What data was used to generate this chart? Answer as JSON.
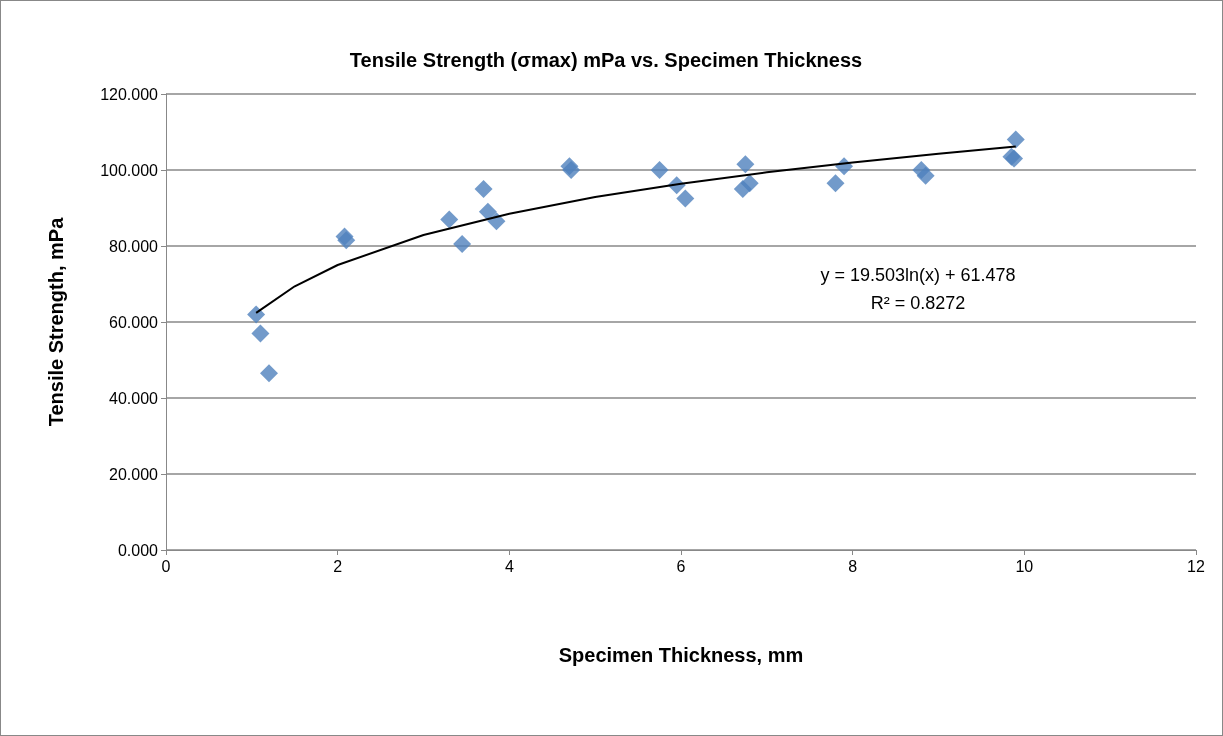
{
  "chart_data": {
    "type": "scatter",
    "title": "Tensile Strength (σmax) mPa vs. Specimen Thickness",
    "xlabel": "Specimen Thickness, mm",
    "ylabel": "Tensile Strength, mPa",
    "annotations": [
      "y = 19.503ln(x) + 61.478",
      "R² = 0.8272"
    ],
    "series": [
      {
        "color": "#4f81bd",
        "x": [
          1.05,
          1.1,
          1.2,
          2.08,
          2.1,
          3.3,
          3.45,
          3.7,
          3.75,
          3.85,
          4.7,
          4.72,
          5.75,
          5.95,
          6.05,
          6.75,
          6.72,
          6.8,
          7.8,
          7.9,
          8.8,
          8.85,
          9.85,
          9.9,
          9.88
        ],
        "values": [
          62,
          57,
          46.5,
          82.5,
          81.5,
          87,
          80.5,
          95,
          89,
          86.5,
          101,
          100,
          100,
          96,
          92.5,
          101.5,
          95,
          96.5,
          96.5,
          101,
          100,
          98.5,
          103.5,
          108,
          103
        ]
      },
      {
        "type": "line",
        "color": "#000000",
        "marker": "none",
        "x": [
          1.05,
          1.5,
          2,
          3,
          4,
          5,
          6,
          7,
          8,
          9,
          9.9
        ],
        "values": [
          62.4,
          69.4,
          75.0,
          82.9,
          88.5,
          92.9,
          96.4,
          99.4,
          102.0,
          104.3,
          106.2
        ]
      }
    ],
    "xlim": [
      0,
      12
    ],
    "xticks": [
      0,
      2,
      4,
      6,
      8,
      10,
      12
    ],
    "ylim": [
      0,
      120
    ],
    "yticks": [
      {
        "value": 0,
        "label": "0.000"
      },
      {
        "value": 20,
        "label": "20.000"
      },
      {
        "value": 40,
        "label": "40.000"
      },
      {
        "value": 60,
        "label": "60.000"
      },
      {
        "value": 80,
        "label": "80.000"
      },
      {
        "value": 100,
        "label": "100.000"
      },
      {
        "value": 120,
        "label": "120.000"
      }
    ],
    "grid": "y",
    "marker": "diamond"
  }
}
